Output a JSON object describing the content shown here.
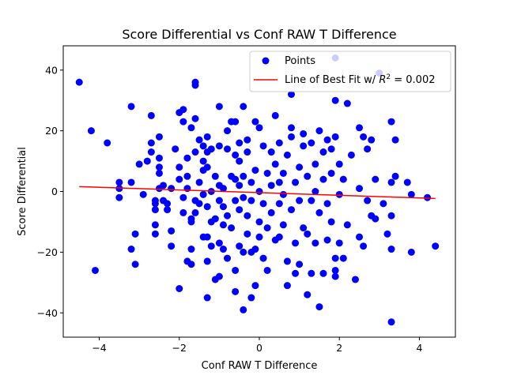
{
  "chart_data": {
    "type": "scatter",
    "title": "Score Differential vs Conf RAW T Difference",
    "xlabel": "Conf RAW T Difference",
    "ylabel": "Score Differential",
    "xlim": [
      -4.9,
      4.9
    ],
    "ylim": [
      -48,
      48
    ],
    "xticks": [
      -4,
      -2,
      0,
      2,
      4
    ],
    "yticks": [
      -40,
      -20,
      0,
      20,
      40
    ],
    "grid": false,
    "legend_position": "top-right",
    "colors": {
      "points": "#0000ff",
      "fit_line": "#ff0000",
      "axes": "#000000"
    },
    "series": [
      {
        "name": "Points",
        "kind": "scatter",
        "points": [
          [
            -4.5,
            36
          ],
          [
            -4.2,
            20
          ],
          [
            -3.8,
            16
          ],
          [
            -4.1,
            -26
          ],
          [
            -3.5,
            3
          ],
          [
            -3.5,
            1
          ],
          [
            -3.5,
            -2
          ],
          [
            -3.2,
            3
          ],
          [
            -3.2,
            28
          ],
          [
            -3.2,
            -19
          ],
          [
            -3.1,
            -14
          ],
          [
            -3.1,
            -24
          ],
          [
            -3.0,
            9
          ],
          [
            -2.9,
            -1
          ],
          [
            -2.8,
            10
          ],
          [
            -2.7,
            16
          ],
          [
            -2.7,
            25
          ],
          [
            -2.7,
            13
          ],
          [
            -2.6,
            -14
          ],
          [
            -2.6,
            -11
          ],
          [
            -2.6,
            -6
          ],
          [
            -2.6,
            -4
          ],
          [
            -2.6,
            -3
          ],
          [
            -2.5,
            18
          ],
          [
            -2.5,
            11
          ],
          [
            -2.5,
            8
          ],
          [
            -2.5,
            6
          ],
          [
            -2.5,
            1
          ],
          [
            -2.4,
            -3
          ],
          [
            -2.4,
            2
          ],
          [
            -2.3,
            -6
          ],
          [
            -2.3,
            -4
          ],
          [
            -2.2,
            -18
          ],
          [
            -2.2,
            -13
          ],
          [
            -2.2,
            1
          ],
          [
            -2.1,
            14
          ],
          [
            -2.0,
            -32
          ],
          [
            -2.0,
            26
          ],
          [
            -2.0,
            4
          ],
          [
            -2.0,
            8
          ],
          [
            -1.9,
            27
          ],
          [
            -1.9,
            23
          ],
          [
            -1.9,
            -7
          ],
          [
            -1.9,
            -2
          ],
          [
            -1.8,
            -23
          ],
          [
            -1.8,
            11
          ],
          [
            -1.8,
            5
          ],
          [
            -1.8,
            1
          ],
          [
            -1.7,
            -24
          ],
          [
            -1.7,
            -19
          ],
          [
            -1.7,
            21
          ],
          [
            -1.7,
            -10
          ],
          [
            -1.7,
            -9
          ],
          [
            -1.6,
            36
          ],
          [
            -1.6,
            35
          ],
          [
            -1.6,
            24
          ],
          [
            -1.6,
            13
          ],
          [
            -1.6,
            -3
          ],
          [
            -1.6,
            -7
          ],
          [
            -1.5,
            17
          ],
          [
            -1.5,
            -4
          ],
          [
            -1.5,
            3
          ],
          [
            -1.4,
            -15
          ],
          [
            -1.4,
            15
          ],
          [
            -1.4,
            10
          ],
          [
            -1.4,
            7
          ],
          [
            -1.4,
            -1
          ],
          [
            -1.3,
            -35
          ],
          [
            -1.3,
            -23
          ],
          [
            -1.3,
            -15
          ],
          [
            -1.3,
            18
          ],
          [
            -1.3,
            13
          ],
          [
            -1.3,
            8
          ],
          [
            -1.3,
            -5
          ],
          [
            -1.2,
            14
          ],
          [
            -1.2,
            0
          ],
          [
            -1.2,
            -10
          ],
          [
            -1.2,
            -18
          ],
          [
            -1.1,
            -29
          ],
          [
            -1.1,
            5
          ],
          [
            -1.1,
            -9
          ],
          [
            -1.0,
            28
          ],
          [
            -1.0,
            -17
          ],
          [
            -1.0,
            15
          ],
          [
            -1.0,
            2
          ],
          [
            -1.0,
            -3
          ],
          [
            -1.0,
            -28
          ],
          [
            -0.9,
            -11
          ],
          [
            -0.9,
            1
          ],
          [
            -0.9,
            -5
          ],
          [
            -0.9,
            -19
          ],
          [
            -0.8,
            20
          ],
          [
            -0.8,
            14
          ],
          [
            -0.8,
            -22
          ],
          [
            -0.8,
            -8
          ],
          [
            -0.7,
            23
          ],
          [
            -0.7,
            5
          ],
          [
            -0.7,
            -12
          ],
          [
            -0.6,
            -33
          ],
          [
            -0.6,
            23
          ],
          [
            -0.6,
            12
          ],
          [
            -0.6,
            4
          ],
          [
            -0.6,
            -26
          ],
          [
            -0.6,
            -3
          ],
          [
            -0.5,
            16
          ],
          [
            -0.5,
            10
          ],
          [
            -0.5,
            2
          ],
          [
            -0.5,
            -6
          ],
          [
            -0.5,
            -18
          ],
          [
            -0.4,
            28
          ],
          [
            -0.4,
            -39
          ],
          [
            -0.4,
            -20
          ],
          [
            -0.4,
            5
          ],
          [
            -0.4,
            -2
          ],
          [
            -0.3,
            17
          ],
          [
            -0.3,
            13
          ],
          [
            -0.3,
            -14
          ],
          [
            -0.3,
            -8
          ],
          [
            -0.2,
            -35
          ],
          [
            -0.2,
            -20
          ],
          [
            -0.2,
            3
          ],
          [
            -0.2,
            -3
          ],
          [
            -0.1,
            23
          ],
          [
            -0.1,
            -31
          ],
          [
            -0.1,
            -19
          ],
          [
            -0.1,
            7
          ],
          [
            0.0,
            21
          ],
          [
            0.0,
            -10
          ],
          [
            0.0,
            -15
          ],
          [
            0.0,
            0
          ],
          [
            0.1,
            15
          ],
          [
            0.1,
            -22
          ],
          [
            0.1,
            -4
          ],
          [
            0.2,
            -26
          ],
          [
            0.2,
            -12
          ],
          [
            0.2,
            6
          ],
          [
            0.3,
            13
          ],
          [
            0.3,
            2
          ],
          [
            0.3,
            -7
          ],
          [
            0.4,
            25
          ],
          [
            0.4,
            -16
          ],
          [
            0.4,
            9
          ],
          [
            0.5,
            -15
          ],
          [
            0.5,
            16
          ],
          [
            0.5,
            -4
          ],
          [
            0.5,
            3
          ],
          [
            0.6,
            -11
          ],
          [
            0.6,
            6
          ],
          [
            0.6,
            -1
          ],
          [
            0.7,
            -31
          ],
          [
            0.7,
            -23
          ],
          [
            0.7,
            12
          ],
          [
            0.8,
            32
          ],
          [
            0.8,
            21
          ],
          [
            0.8,
            -6
          ],
          [
            0.8,
            18
          ],
          [
            0.9,
            -27
          ],
          [
            0.9,
            -17
          ],
          [
            0.9,
            3
          ],
          [
            1.0,
            -24
          ],
          [
            1.0,
            8
          ],
          [
            1.0,
            -3
          ],
          [
            1.1,
            15
          ],
          [
            1.1,
            -12
          ],
          [
            1.1,
            19
          ],
          [
            1.2,
            -34
          ],
          [
            1.2,
            -14
          ],
          [
            1.2,
            5
          ],
          [
            1.3,
            -27
          ],
          [
            1.3,
            16
          ],
          [
            1.3,
            -3
          ],
          [
            1.4,
            0
          ],
          [
            1.4,
            -17
          ],
          [
            1.4,
            9
          ],
          [
            1.5,
            20
          ],
          [
            1.5,
            -38
          ],
          [
            1.5,
            -7
          ],
          [
            1.6,
            -27
          ],
          [
            1.6,
            13
          ],
          [
            1.6,
            4
          ],
          [
            1.7,
            17
          ],
          [
            1.7,
            -16
          ],
          [
            1.7,
            -4
          ],
          [
            1.8,
            14
          ],
          [
            1.8,
            6
          ],
          [
            1.8,
            -10
          ],
          [
            1.9,
            44
          ],
          [
            1.9,
            30
          ],
          [
            1.9,
            -22
          ],
          [
            1.9,
            -28
          ],
          [
            1.9,
            -26
          ],
          [
            1.9,
            18
          ],
          [
            2.0,
            -1
          ],
          [
            2.0,
            9
          ],
          [
            2.0,
            -17
          ],
          [
            2.1,
            -22
          ],
          [
            2.1,
            4
          ],
          [
            2.2,
            29
          ],
          [
            2.2,
            -11
          ],
          [
            2.3,
            12
          ],
          [
            2.4,
            -29
          ],
          [
            2.5,
            -15
          ],
          [
            2.5,
            21
          ],
          [
            2.5,
            1
          ],
          [
            2.6,
            18
          ],
          [
            2.6,
            -18
          ],
          [
            2.7,
            14
          ],
          [
            2.7,
            -3
          ],
          [
            2.8,
            17
          ],
          [
            2.8,
            -8
          ],
          [
            2.9,
            4
          ],
          [
            2.9,
            -9
          ],
          [
            3.0,
            39
          ],
          [
            3.1,
            -4
          ],
          [
            3.2,
            -14
          ],
          [
            3.3,
            23
          ],
          [
            3.3,
            3
          ],
          [
            3.3,
            -8
          ],
          [
            3.3,
            -19
          ],
          [
            3.3,
            -43
          ],
          [
            3.4,
            17
          ],
          [
            3.4,
            5
          ],
          [
            3.7,
            3
          ],
          [
            3.8,
            -1
          ],
          [
            3.8,
            -20
          ],
          [
            4.2,
            -2
          ],
          [
            4.4,
            -18
          ]
        ]
      },
      {
        "name": "Line of Best Fit w/ R^2 = 0.002",
        "kind": "line",
        "x": [
          -4.5,
          4.4
        ],
        "y": [
          1.6,
          -2.3
        ]
      }
    ]
  }
}
